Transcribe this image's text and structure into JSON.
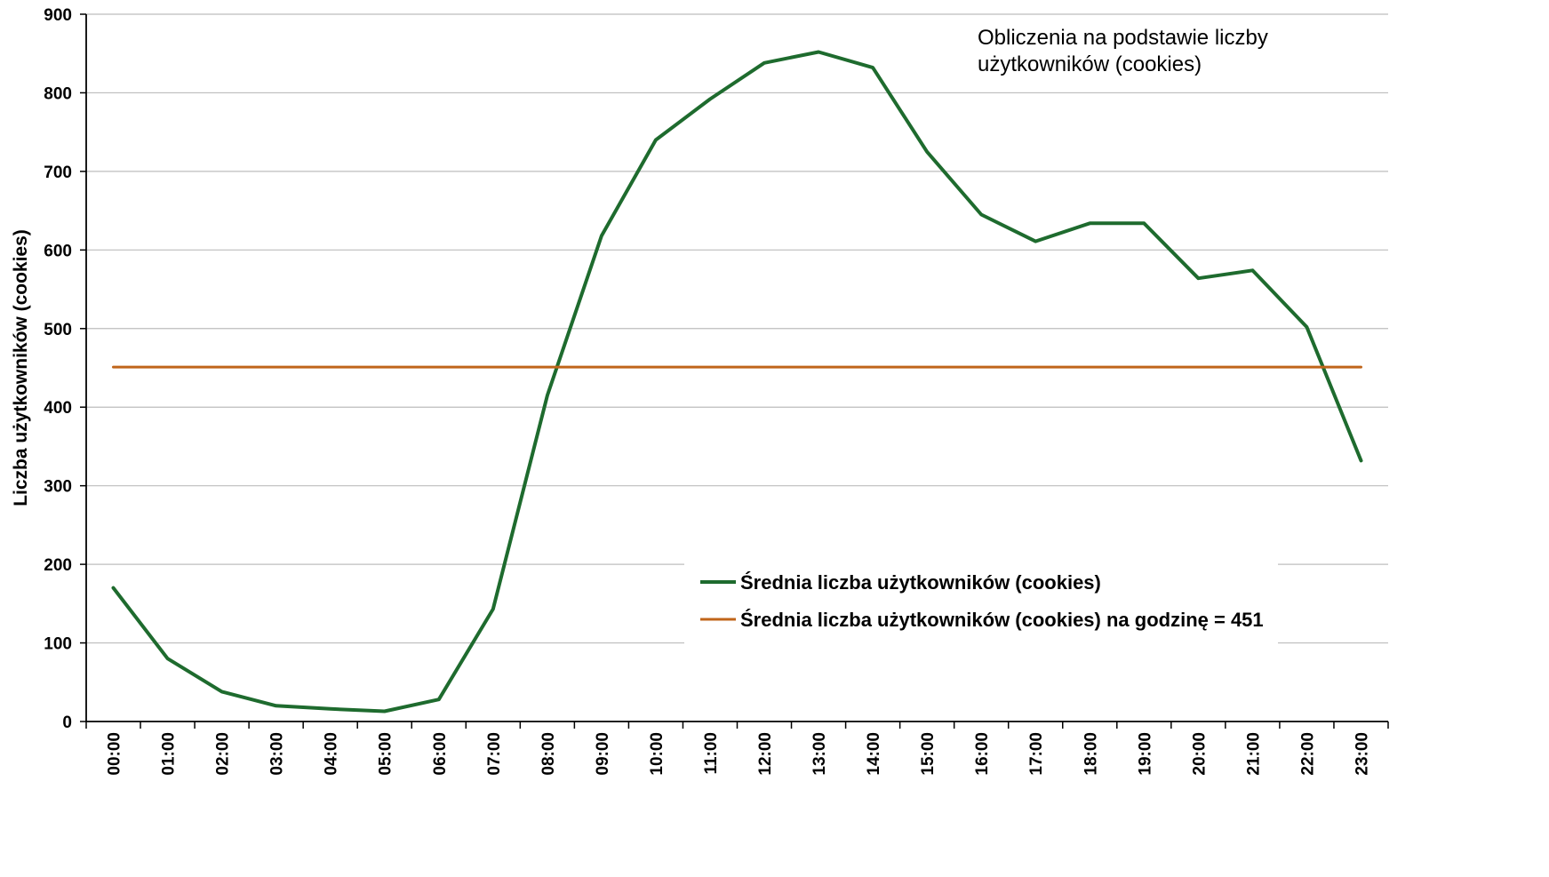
{
  "chart_data": {
    "type": "line",
    "title": "",
    "ylabel": "Liczba użytkowników (cookies)",
    "xlabel": "",
    "ylim": [
      0,
      900
    ],
    "yticks": [
      0,
      100,
      200,
      300,
      400,
      500,
      600,
      700,
      800,
      900
    ],
    "grid": true,
    "categories": [
      "00:00",
      "01:00",
      "02:00",
      "03:00",
      "04:00",
      "05:00",
      "06:00",
      "07:00",
      "08:00",
      "09:00",
      "10:00",
      "11:00",
      "12:00",
      "13:00",
      "14:00",
      "15:00",
      "16:00",
      "17:00",
      "18:00",
      "19:00",
      "20:00",
      "21:00",
      "22:00",
      "23:00"
    ],
    "series": [
      {
        "name": "Średnia liczba użytkowników (cookies)",
        "color": "#1e6b2e",
        "values": [
          170,
          80,
          38,
          20,
          16,
          13,
          28,
          143,
          415,
          618,
          740,
          792,
          838,
          852,
          832,
          725,
          645,
          611,
          634,
          634,
          564,
          574,
          502,
          332
        ]
      },
      {
        "name": "Średnia liczba użytkowników (cookies) na godzinę = 451",
        "color": "#c0651a",
        "values": [
          451,
          451,
          451,
          451,
          451,
          451,
          451,
          451,
          451,
          451,
          451,
          451,
          451,
          451,
          451,
          451,
          451,
          451,
          451,
          451,
          451,
          451,
          451,
          451
        ]
      }
    ],
    "legend_position": "bottom-right",
    "annotation": "Obliczenia na podstawie liczby użytkowników (cookies)"
  },
  "annotation_lines": [
    "Obliczenia na podstawie liczby",
    "użytkowników (cookies)"
  ]
}
